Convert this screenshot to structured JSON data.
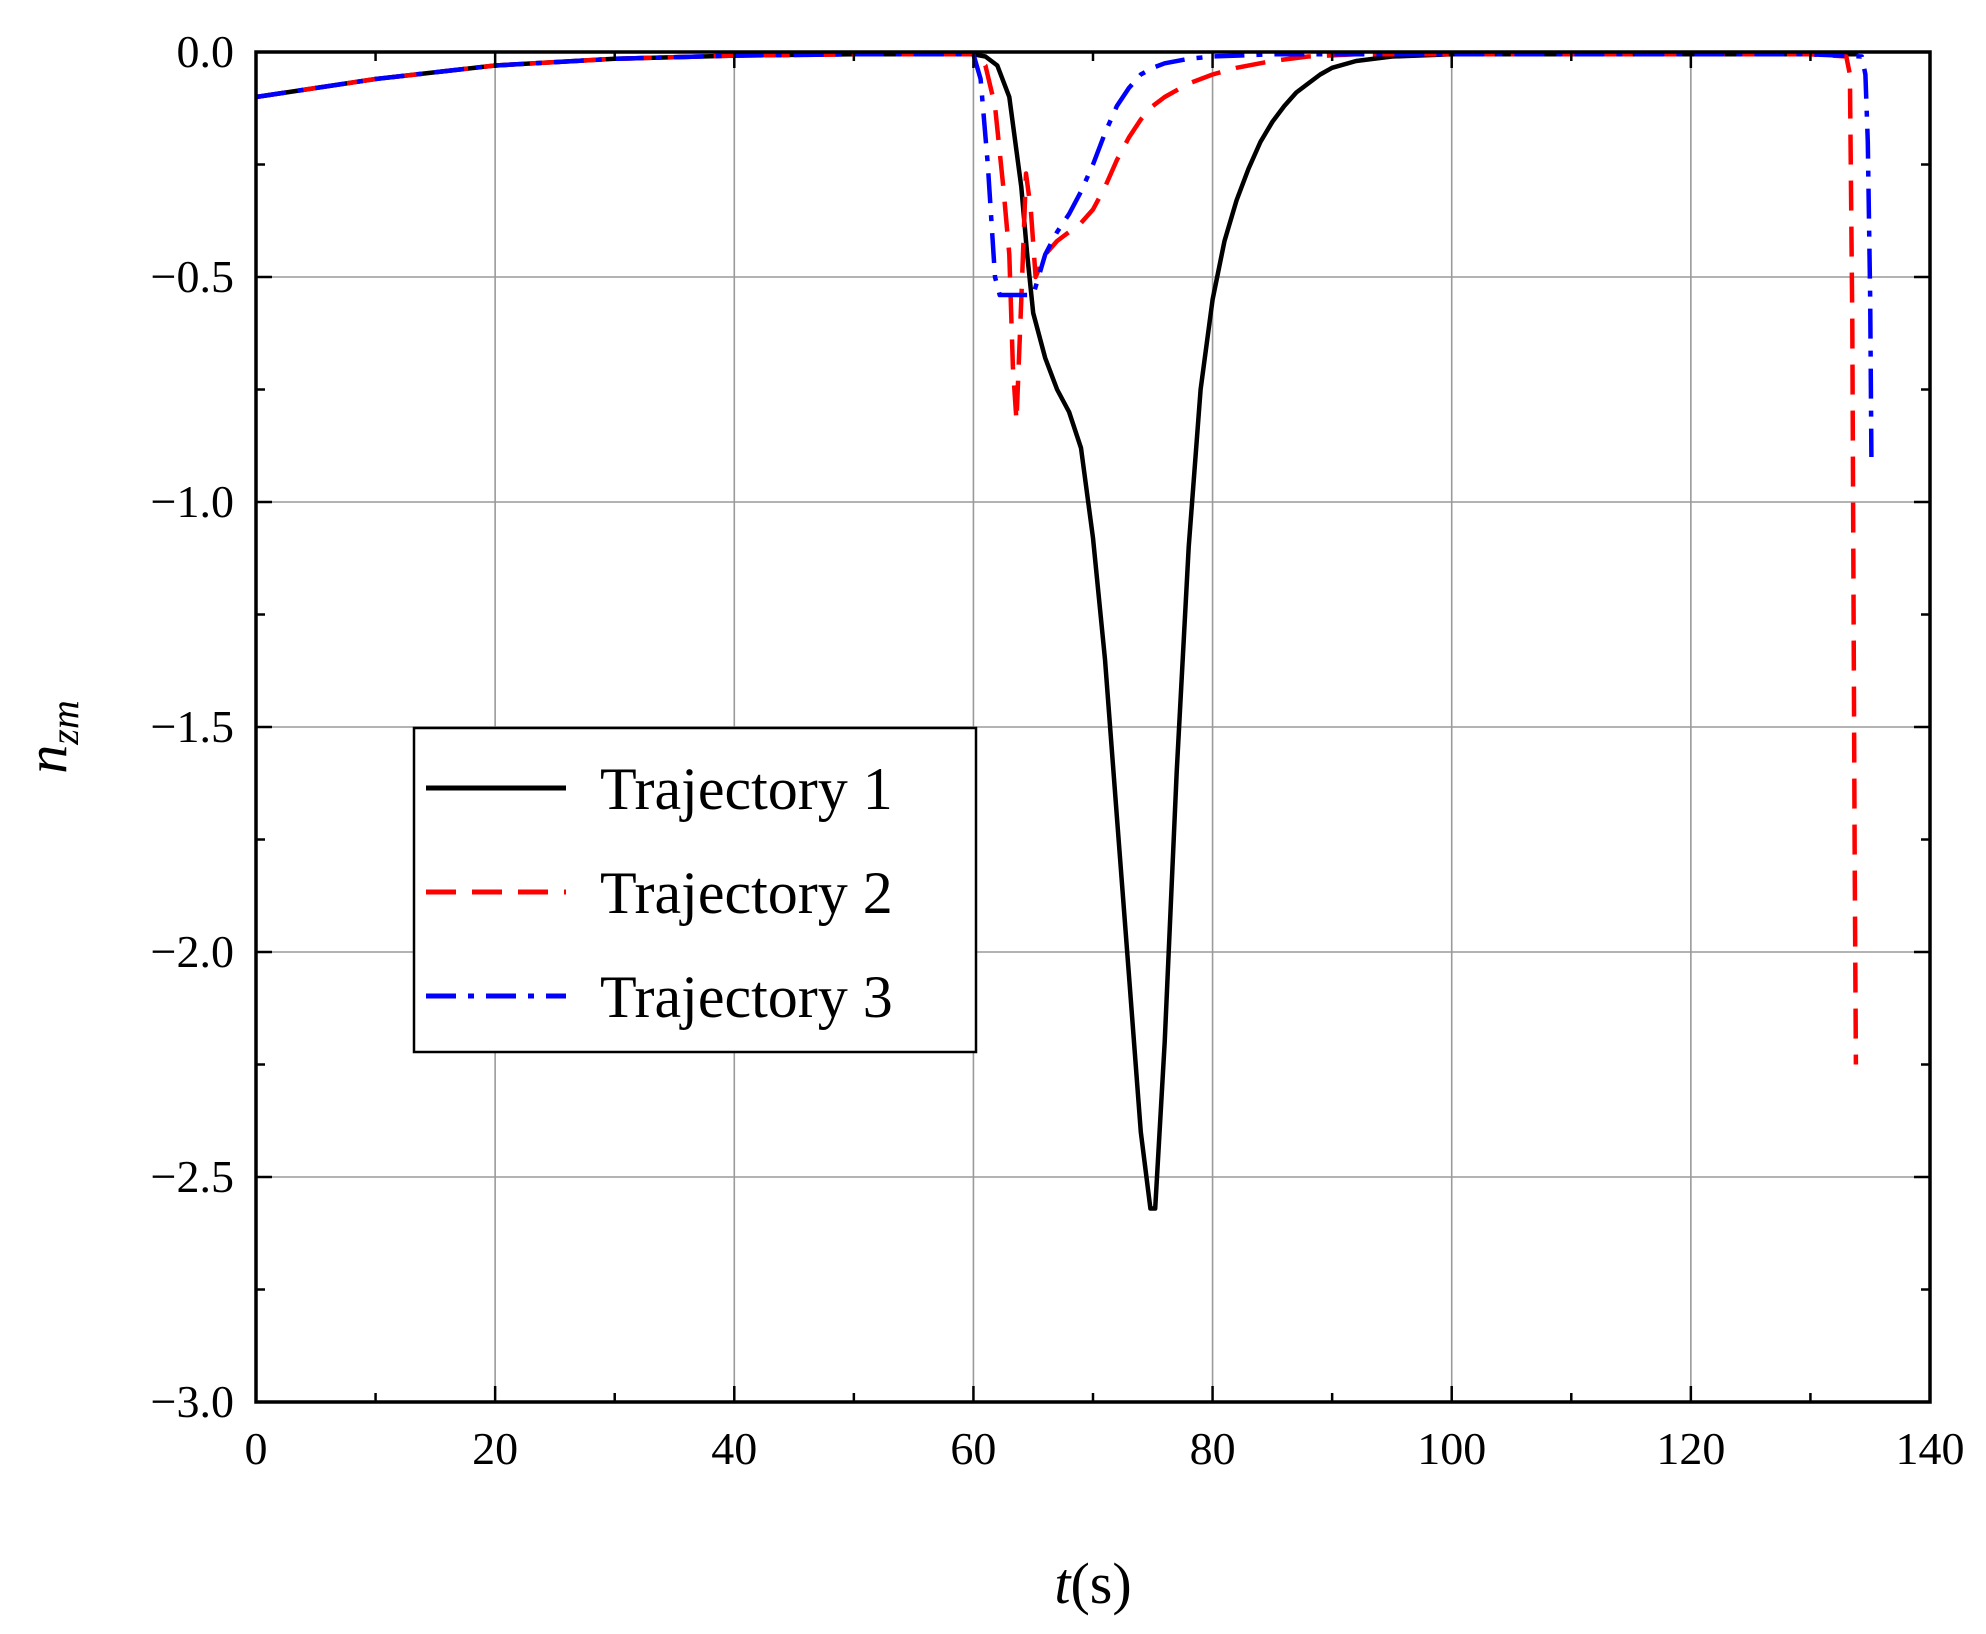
{
  "chart_data": {
    "type": "line",
    "xlabel": {
      "italic": "t",
      "rest": "(s)"
    },
    "ylabel": {
      "main": "n",
      "sub": "zm"
    },
    "xlim": [
      0,
      140
    ],
    "ylim": [
      -3.0,
      0.0
    ],
    "xticks": [
      0,
      20,
      40,
      60,
      80,
      100,
      120,
      140
    ],
    "xtick_labels": [
      "0",
      "20",
      "40",
      "60",
      "80",
      "100",
      "120",
      "140"
    ],
    "yticks": [
      0.0,
      -0.5,
      -1.0,
      -1.5,
      -2.0,
      -2.5,
      -3.0
    ],
    "ytick_labels": [
      "0.0",
      "−0.5",
      "−1.0",
      "−1.5",
      "−2.0",
      "−2.5",
      "−3.0"
    ],
    "grid": true,
    "legend": {
      "position": "center-left"
    },
    "series": [
      {
        "name": "Trajectory 1",
        "color": "#000000",
        "style": "solid",
        "x": [
          0,
          10,
          20,
          30,
          40,
          50,
          60,
          61,
          62,
          63,
          64,
          64.5,
          65,
          66,
          67,
          68,
          69,
          70,
          71,
          72,
          73,
          74,
          74.8,
          75.2,
          76,
          77,
          78,
          79,
          80,
          81,
          82,
          83,
          84,
          85,
          86,
          87,
          88,
          89,
          90,
          92,
          95,
          100,
          110,
          120,
          130,
          134
        ],
        "y": [
          -0.1,
          -0.06,
          -0.03,
          -0.015,
          -0.008,
          -0.005,
          -0.005,
          -0.01,
          -0.03,
          -0.1,
          -0.3,
          -0.45,
          -0.58,
          -0.68,
          -0.75,
          -0.8,
          -0.88,
          -1.08,
          -1.35,
          -1.7,
          -2.05,
          -2.4,
          -2.57,
          -2.57,
          -2.2,
          -1.6,
          -1.1,
          -0.75,
          -0.55,
          -0.42,
          -0.33,
          -0.26,
          -0.2,
          -0.155,
          -0.12,
          -0.09,
          -0.07,
          -0.05,
          -0.035,
          -0.02,
          -0.01,
          -0.005,
          -0.005,
          -0.005,
          -0.005,
          -0.005
        ]
      },
      {
        "name": "Trajectory 2",
        "color": "#ff0000",
        "style": "dashed",
        "x": [
          0,
          10,
          20,
          30,
          40,
          50,
          60,
          61,
          61.8,
          62.5,
          63,
          63.3,
          63.6,
          64,
          64.4,
          64.8,
          65.2,
          66,
          67,
          68,
          69,
          70,
          71,
          72,
          73,
          74,
          75,
          76,
          78,
          80,
          82,
          85,
          88,
          92,
          100,
          110,
          120,
          130,
          133,
          133.3,
          133.5,
          133.7,
          133.8
        ],
        "y": [
          -0.1,
          -0.06,
          -0.03,
          -0.015,
          -0.008,
          -0.005,
          -0.005,
          -0.03,
          -0.12,
          -0.3,
          -0.45,
          -0.7,
          -0.82,
          -0.55,
          -0.27,
          -0.35,
          -0.5,
          -0.45,
          -0.42,
          -0.4,
          -0.38,
          -0.35,
          -0.3,
          -0.24,
          -0.19,
          -0.15,
          -0.12,
          -0.1,
          -0.07,
          -0.05,
          -0.035,
          -0.02,
          -0.01,
          -0.005,
          -0.005,
          -0.005,
          -0.005,
          -0.005,
          -0.01,
          -0.05,
          -0.6,
          -1.8,
          -2.25
        ]
      },
      {
        "name": "Trajectory 3",
        "color": "#0000ff",
        "style": "dashdot",
        "x": [
          0,
          10,
          20,
          30,
          40,
          50,
          60,
          60.6,
          61.2,
          61.8,
          62.2,
          62.8,
          63.5,
          64.2,
          65,
          66,
          67,
          68,
          69,
          70,
          71,
          72,
          73,
          74,
          75,
          76,
          78,
          80,
          85,
          90,
          100,
          110,
          120,
          130,
          134.3,
          134.6,
          134.8,
          135.0,
          135.1
        ],
        "y": [
          -0.1,
          -0.06,
          -0.03,
          -0.015,
          -0.008,
          -0.005,
          -0.005,
          -0.06,
          -0.25,
          -0.5,
          -0.54,
          -0.54,
          -0.54,
          -0.54,
          -0.54,
          -0.45,
          -0.4,
          -0.36,
          -0.31,
          -0.25,
          -0.18,
          -0.12,
          -0.08,
          -0.05,
          -0.035,
          -0.025,
          -0.015,
          -0.01,
          -0.005,
          -0.005,
          -0.005,
          -0.005,
          -0.005,
          -0.005,
          -0.01,
          -0.05,
          -0.2,
          -0.55,
          -0.9
        ]
      }
    ]
  }
}
